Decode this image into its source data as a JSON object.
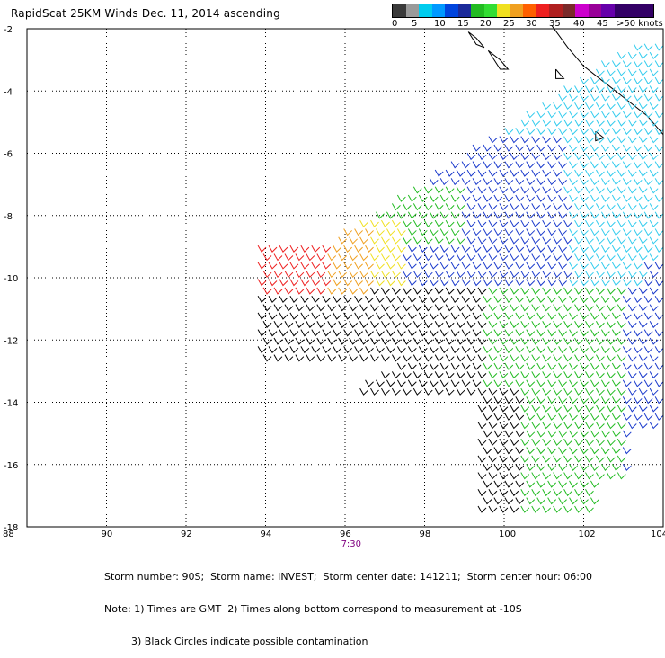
{
  "title": "RapidScat 25KM Winds Dec. 11, 2014 ascending",
  "legend": {
    "colors": [
      "#3a3a3a",
      "#9a9a9a",
      "#00ccee",
      "#0099ff",
      "#0044dd",
      "#1b2a9a",
      "#22bb22",
      "#33dd33",
      "#f0e020",
      "#f0a020",
      "#ff6000",
      "#ee2020",
      "#b02020",
      "#7a2a2a",
      "#cc00cc",
      "#990099",
      "#6600aa",
      "#330066",
      "#330066",
      "#330066"
    ],
    "labels": [
      "0",
      "5",
      "10",
      "15",
      "20",
      "25",
      "30",
      "35",
      "40",
      "45",
      ">50 knots"
    ]
  },
  "map": {
    "lat_labels": [
      "-2",
      "-4",
      "-6",
      "-8",
      "-10",
      "-12",
      "-14",
      "-16",
      "-18"
    ],
    "lon_labels": [
      "88",
      "90",
      "92",
      "94",
      "96",
      "98",
      "100",
      "102",
      "104"
    ],
    "time_label": "7:30"
  },
  "footer": {
    "line1": "Storm number: 90S;  Storm name: INVEST;  Storm center date: 141211;  Storm center hour: 06:00",
    "line2": "Note: 1) Times are GMT  2) Times along bottom correspond to measurement at -10S",
    "line3": "3) Black Circles indicate possible contamination"
  }
}
